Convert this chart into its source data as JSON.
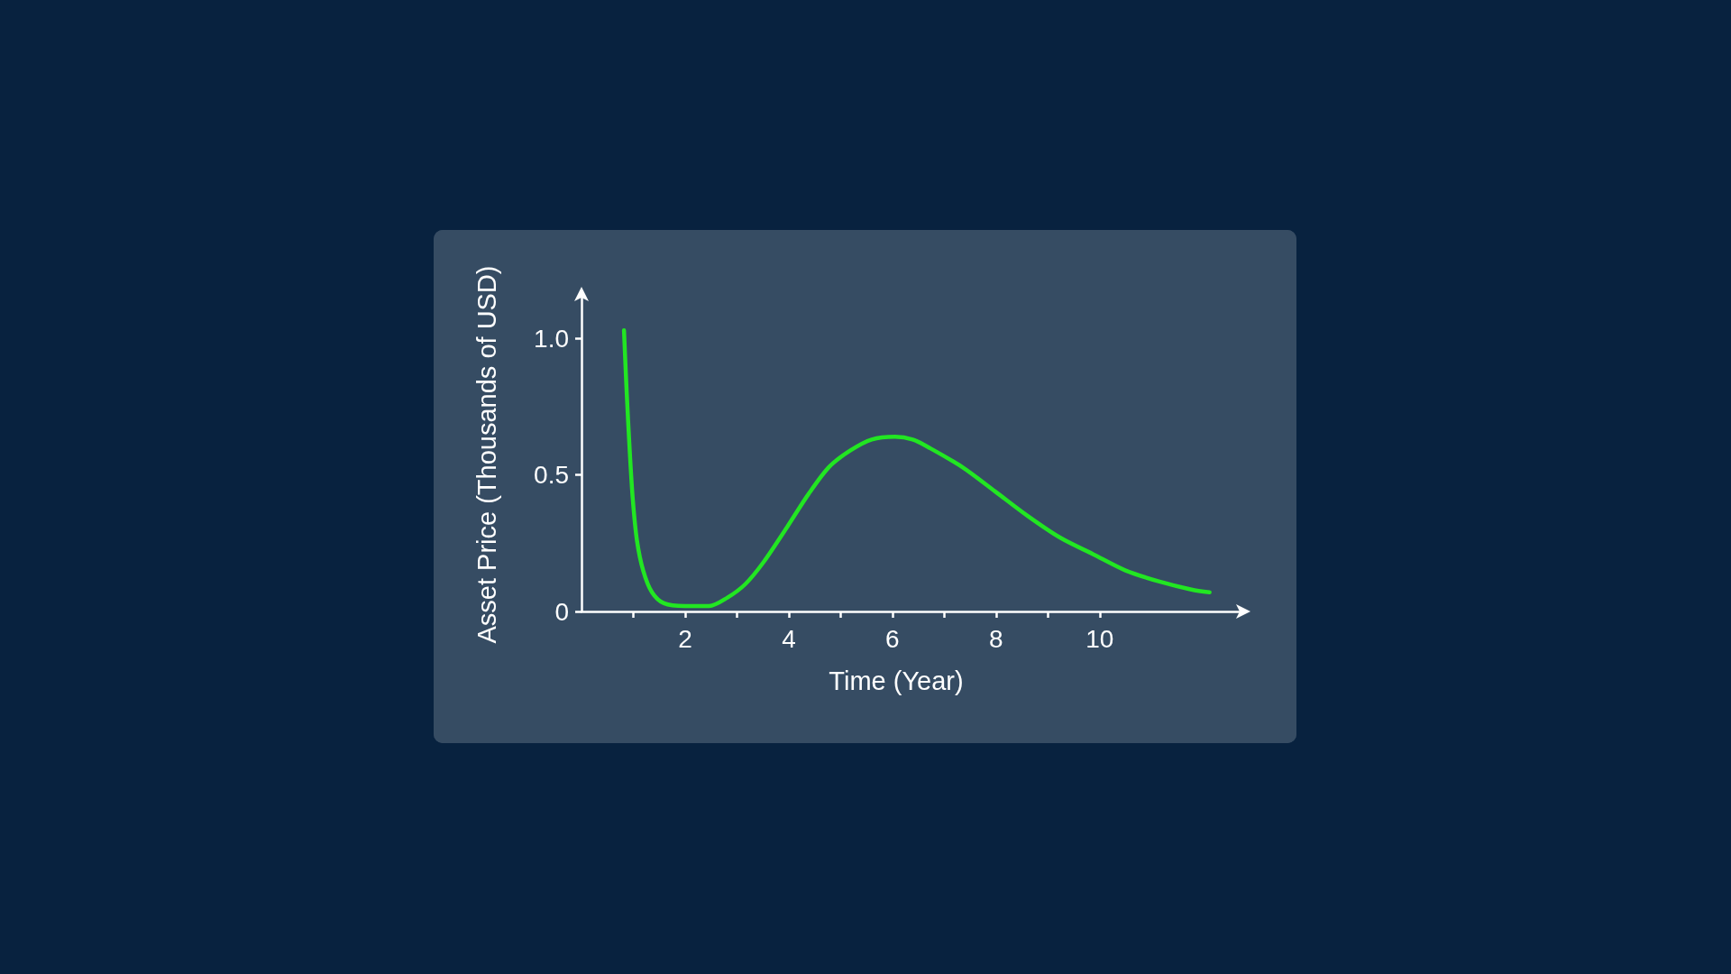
{
  "chart_data": {
    "type": "line",
    "xlabel": "Time (Year)",
    "ylabel": "Asset Price (Thousands of USD)",
    "x": [
      0.82,
      0.87,
      0.93,
      0.99,
      1.07,
      1.19,
      1.36,
      1.59,
      2.0,
      2.46,
      2.81,
      3.16,
      3.51,
      3.97,
      4.38,
      4.78,
      5.19,
      5.6,
      6.05,
      6.39,
      6.71,
      7.34,
      7.98,
      8.61,
      9.24,
      9.87,
      10.5,
      11.14,
      11.77,
      12.12
    ],
    "values": [
      1.03,
      0.81,
      0.59,
      0.41,
      0.26,
      0.15,
      0.07,
      0.03,
      0.02,
      0.02,
      0.05,
      0.1,
      0.18,
      0.31,
      0.43,
      0.53,
      0.59,
      0.63,
      0.64,
      0.63,
      0.6,
      0.53,
      0.44,
      0.35,
      0.27,
      0.21,
      0.15,
      0.11,
      0.08,
      0.07
    ],
    "color": "#22e622",
    "xlim": [
      0,
      12.7
    ],
    "xticks": [
      {
        "value": 1,
        "label": null
      },
      2,
      {
        "value": 3,
        "label": null
      },
      4,
      {
        "value": 5,
        "label": null
      },
      6,
      {
        "value": 7,
        "label": null
      },
      8,
      {
        "value": 9,
        "label": null
      },
      10
    ],
    "ylim": [
      0,
      1.15
    ],
    "yticks": [
      0,
      0.5,
      {
        "value": 1,
        "label": "1.0"
      }
    ],
    "marker": "none",
    "line_style": "solid"
  }
}
